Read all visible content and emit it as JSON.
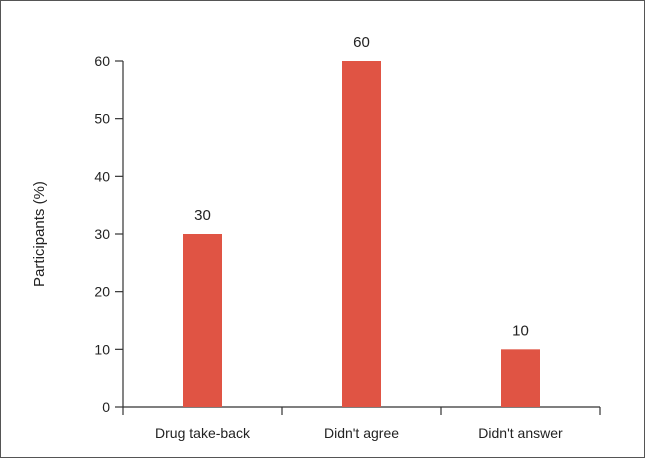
{
  "chart_data": {
    "type": "bar",
    "title": "",
    "xlabel": "",
    "ylabel": "Participants (%)",
    "categories": [
      "Drug take-back",
      "Didn't agree",
      "Didn't answer"
    ],
    "values": [
      30,
      60,
      10
    ],
    "data_labels": [
      "30",
      "60",
      "10"
    ],
    "ylim": [
      0,
      60
    ],
    "yticks": [
      0,
      10,
      20,
      30,
      40,
      50,
      60
    ],
    "grid": false,
    "legend": "none",
    "bar_color": "#e05444",
    "axis_color": "#333333"
  }
}
